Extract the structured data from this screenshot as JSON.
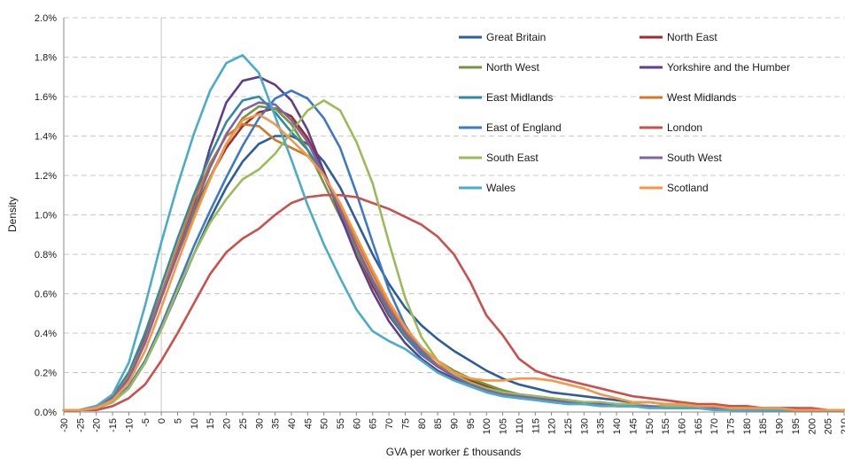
{
  "chart_data": {
    "type": "line",
    "title": "",
    "xlabel": "GVA per worker £ thousands",
    "ylabel": "Density",
    "x": [
      -30,
      -25,
      -20,
      -15,
      -10,
      -5,
      0,
      5,
      10,
      15,
      20,
      25,
      30,
      35,
      40,
      45,
      50,
      55,
      60,
      65,
      70,
      75,
      80,
      85,
      90,
      95,
      100,
      105,
      110,
      115,
      120,
      125,
      130,
      135,
      140,
      145,
      150,
      155,
      160,
      165,
      170,
      175,
      180,
      185,
      190,
      195,
      200,
      205,
      210
    ],
    "x_tick_labels": [
      "-30",
      "-25",
      "-20",
      "-15",
      "-10",
      "-5",
      "0",
      "5",
      "10",
      "15",
      "20",
      "25",
      "30",
      "35",
      "40",
      "45",
      "50",
      "55",
      "60",
      "65",
      "70",
      "75",
      "80",
      "85",
      "90",
      "95",
      "100",
      "105",
      "110",
      "115",
      "120",
      "125",
      "130",
      "135",
      "140",
      "145",
      "150",
      "155",
      "160",
      "165",
      "170",
      "175",
      "180",
      "185",
      "190",
      "195",
      "200",
      "205",
      "210"
    ],
    "y_tick_labels": [
      "0.0%",
      "0.2%",
      "0.4%",
      "0.6%",
      "0.8%",
      "1.0%",
      "1.2%",
      "1.4%",
      "1.6%",
      "1.8%",
      "2.0%"
    ],
    "xlim": [
      -30,
      210
    ],
    "ylim": [
      0,
      2.0
    ],
    "y_unit": "%",
    "grid": "horizontal dashed",
    "legend_position": "top-right",
    "series": [
      {
        "name": "Great Britain",
        "color": "#2e5d9c",
        "values": [
          0.01,
          0.01,
          0.02,
          0.05,
          0.12,
          0.25,
          0.42,
          0.61,
          0.8,
          0.98,
          1.14,
          1.27,
          1.36,
          1.4,
          1.4,
          1.36,
          1.27,
          1.14,
          0.97,
          0.8,
          0.65,
          0.53,
          0.44,
          0.37,
          0.31,
          0.26,
          0.21,
          0.17,
          0.14,
          0.12,
          0.1,
          0.09,
          0.08,
          0.07,
          0.06,
          0.05,
          0.05,
          0.04,
          0.04,
          0.03,
          0.03,
          0.03,
          0.02,
          0.02,
          0.02,
          0.02,
          0.01,
          0.01,
          0.01
        ]
      },
      {
        "name": "North East",
        "color": "#9c2f2e",
        "values": [
          0.01,
          0.01,
          0.03,
          0.07,
          0.18,
          0.37,
          0.6,
          0.82,
          1.02,
          1.19,
          1.34,
          1.45,
          1.52,
          1.54,
          1.5,
          1.39,
          1.22,
          1.02,
          0.82,
          0.64,
          0.49,
          0.38,
          0.3,
          0.24,
          0.19,
          0.16,
          0.13,
          0.11,
          0.09,
          0.08,
          0.07,
          0.06,
          0.05,
          0.05,
          0.04,
          0.04,
          0.03,
          0.03,
          0.03,
          0.02,
          0.02,
          0.02,
          0.02,
          0.01,
          0.01,
          0.01,
          0.01,
          0.01,
          0.01
        ]
      },
      {
        "name": "North West",
        "color": "#77953d",
        "values": [
          0.01,
          0.01,
          0.03,
          0.07,
          0.17,
          0.35,
          0.58,
          0.8,
          1.0,
          1.19,
          1.36,
          1.49,
          1.55,
          1.54,
          1.46,
          1.33,
          1.16,
          0.99,
          0.82,
          0.66,
          0.52,
          0.41,
          0.32,
          0.26,
          0.21,
          0.17,
          0.14,
          0.11,
          0.09,
          0.08,
          0.07,
          0.06,
          0.05,
          0.04,
          0.04,
          0.03,
          0.03,
          0.03,
          0.02,
          0.02,
          0.02,
          0.02,
          0.01,
          0.01,
          0.01,
          0.01,
          0.01,
          0.01,
          0.01
        ]
      },
      {
        "name": "Yorkshire and the Humber",
        "color": "#5f3f8c",
        "values": [
          0.01,
          0.01,
          0.03,
          0.07,
          0.18,
          0.36,
          0.6,
          0.83,
          1.05,
          1.34,
          1.57,
          1.68,
          1.7,
          1.66,
          1.58,
          1.43,
          1.22,
          1.0,
          0.79,
          0.61,
          0.46,
          0.35,
          0.27,
          0.21,
          0.17,
          0.14,
          0.11,
          0.09,
          0.08,
          0.07,
          0.06,
          0.05,
          0.04,
          0.04,
          0.03,
          0.03,
          0.03,
          0.02,
          0.02,
          0.02,
          0.02,
          0.01,
          0.01,
          0.01,
          0.01,
          0.01,
          0.01,
          0.01,
          0.01
        ]
      },
      {
        "name": "East Midlands",
        "color": "#2f8aa2",
        "values": [
          0.01,
          0.01,
          0.03,
          0.08,
          0.2,
          0.4,
          0.64,
          0.88,
          1.1,
          1.3,
          1.47,
          1.58,
          1.6,
          1.52,
          1.42,
          1.33,
          1.2,
          1.03,
          0.84,
          0.66,
          0.5,
          0.38,
          0.29,
          0.23,
          0.18,
          0.15,
          0.12,
          0.1,
          0.08,
          0.07,
          0.06,
          0.05,
          0.05,
          0.04,
          0.04,
          0.03,
          0.03,
          0.02,
          0.02,
          0.02,
          0.02,
          0.01,
          0.01,
          0.01,
          0.01,
          0.01,
          0.01,
          0.01,
          0.01
        ]
      },
      {
        "name": "West Midlands",
        "color": "#d1782a",
        "values": [
          0.01,
          0.01,
          0.03,
          0.07,
          0.18,
          0.36,
          0.6,
          0.84,
          1.07,
          1.26,
          1.4,
          1.46,
          1.45,
          1.38,
          1.34,
          1.3,
          1.2,
          1.05,
          0.87,
          0.7,
          0.54,
          0.41,
          0.31,
          0.24,
          0.19,
          0.15,
          0.12,
          0.1,
          0.08,
          0.07,
          0.06,
          0.05,
          0.04,
          0.04,
          0.03,
          0.03,
          0.03,
          0.02,
          0.02,
          0.02,
          0.02,
          0.01,
          0.01,
          0.01,
          0.01,
          0.01,
          0.01,
          0.01,
          0.01
        ]
      },
      {
        "name": "East of England",
        "color": "#3f79c4",
        "values": [
          0.01,
          0.01,
          0.02,
          0.05,
          0.13,
          0.26,
          0.44,
          0.64,
          0.84,
          1.02,
          1.19,
          1.35,
          1.49,
          1.59,
          1.63,
          1.59,
          1.49,
          1.34,
          1.11,
          0.86,
          0.62,
          0.44,
          0.31,
          0.23,
          0.18,
          0.14,
          0.11,
          0.09,
          0.08,
          0.07,
          0.06,
          0.05,
          0.05,
          0.04,
          0.04,
          0.03,
          0.03,
          0.03,
          0.02,
          0.02,
          0.02,
          0.02,
          0.01,
          0.01,
          0.01,
          0.01,
          0.01,
          0.01,
          0.01
        ]
      },
      {
        "name": "London",
        "color": "#c9514d",
        "values": [
          0.01,
          0.01,
          0.01,
          0.03,
          0.07,
          0.14,
          0.26,
          0.4,
          0.55,
          0.7,
          0.81,
          0.88,
          0.93,
          1.0,
          1.06,
          1.09,
          1.1,
          1.1,
          1.09,
          1.06,
          1.03,
          0.99,
          0.95,
          0.89,
          0.8,
          0.66,
          0.49,
          0.39,
          0.27,
          0.21,
          0.18,
          0.16,
          0.14,
          0.12,
          0.1,
          0.08,
          0.07,
          0.06,
          0.05,
          0.04,
          0.04,
          0.03,
          0.03,
          0.02,
          0.02,
          0.02,
          0.02,
          0.01,
          0.01
        ]
      },
      {
        "name": "South East",
        "color": "#9bbb59",
        "values": [
          0.01,
          0.01,
          0.02,
          0.05,
          0.12,
          0.25,
          0.42,
          0.62,
          0.8,
          0.96,
          1.08,
          1.18,
          1.23,
          1.31,
          1.42,
          1.53,
          1.58,
          1.53,
          1.37,
          1.16,
          0.86,
          0.58,
          0.38,
          0.26,
          0.19,
          0.15,
          0.12,
          0.1,
          0.09,
          0.08,
          0.07,
          0.06,
          0.05,
          0.05,
          0.04,
          0.04,
          0.03,
          0.03,
          0.03,
          0.02,
          0.02,
          0.02,
          0.02,
          0.01,
          0.01,
          0.01,
          0.01,
          0.01,
          0.01
        ]
      },
      {
        "name": "South West",
        "color": "#8064a2",
        "values": [
          0.01,
          0.01,
          0.03,
          0.07,
          0.17,
          0.35,
          0.58,
          0.8,
          1.03,
          1.24,
          1.41,
          1.53,
          1.57,
          1.56,
          1.48,
          1.37,
          1.2,
          1.02,
          0.84,
          0.67,
          0.52,
          0.4,
          0.3,
          0.23,
          0.18,
          0.14,
          0.11,
          0.09,
          0.08,
          0.07,
          0.06,
          0.05,
          0.04,
          0.04,
          0.03,
          0.03,
          0.03,
          0.02,
          0.02,
          0.02,
          0.02,
          0.01,
          0.01,
          0.01,
          0.01,
          0.01,
          0.01,
          0.01,
          0.01
        ]
      },
      {
        "name": "Wales",
        "color": "#4bacc6",
        "values": [
          0.01,
          0.01,
          0.03,
          0.09,
          0.25,
          0.54,
          0.86,
          1.15,
          1.41,
          1.63,
          1.77,
          1.81,
          1.72,
          1.5,
          1.28,
          1.05,
          0.85,
          0.68,
          0.52,
          0.41,
          0.36,
          0.32,
          0.26,
          0.2,
          0.16,
          0.13,
          0.1,
          0.08,
          0.07,
          0.06,
          0.05,
          0.04,
          0.04,
          0.03,
          0.03,
          0.03,
          0.02,
          0.02,
          0.02,
          0.02,
          0.01,
          0.01,
          0.01,
          0.01,
          0.01,
          0.01,
          0.01,
          0.01,
          0.01
        ]
      },
      {
        "name": "Scotland",
        "color": "#f79646",
        "values": [
          0.01,
          0.01,
          0.02,
          0.06,
          0.15,
          0.31,
          0.53,
          0.76,
          0.98,
          1.18,
          1.36,
          1.48,
          1.51,
          1.46,
          1.38,
          1.3,
          1.2,
          1.06,
          0.89,
          0.72,
          0.56,
          0.43,
          0.33,
          0.26,
          0.2,
          0.17,
          0.16,
          0.16,
          0.17,
          0.17,
          0.16,
          0.14,
          0.12,
          0.09,
          0.07,
          0.05,
          0.05,
          0.04,
          0.04,
          0.03,
          0.03,
          0.02,
          0.02,
          0.02,
          0.02,
          0.01,
          0.01,
          0.01,
          0.01
        ]
      }
    ]
  }
}
